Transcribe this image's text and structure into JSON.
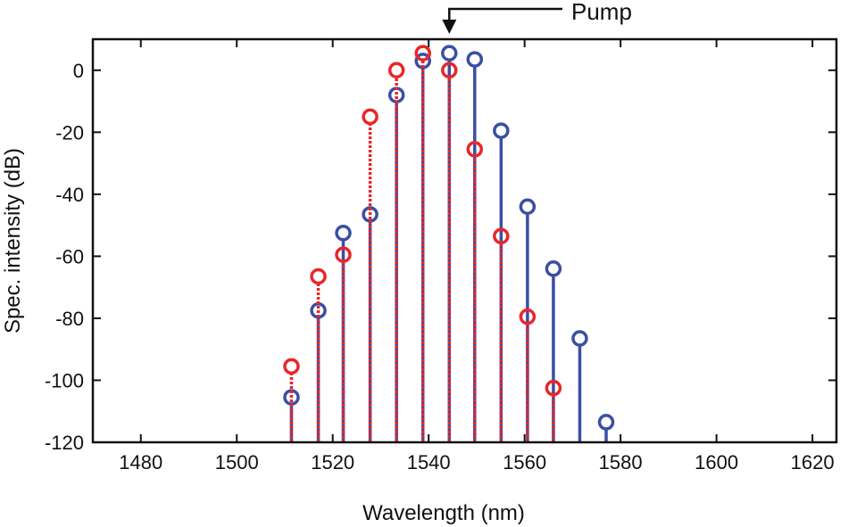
{
  "chart_data": {
    "type": "stem",
    "title": "",
    "xlabel": "Wavelength (nm)",
    "ylabel": "Spec. intensity (dB)",
    "xlim": [
      1470,
      1625
    ],
    "ylim": [
      -120,
      10
    ],
    "x_ticks": [
      1480,
      1500,
      1520,
      1540,
      1560,
      1580,
      1600,
      1620
    ],
    "y_ticks": [
      0,
      -20,
      -40,
      -60,
      -80,
      -100,
      -120
    ],
    "grid": false,
    "legend": "none",
    "baseline": -120,
    "series": [
      {
        "name": "blue",
        "color": "#3a4fa3",
        "line_style": "solid",
        "x": [
          1511.4,
          1517.0,
          1522.2,
          1527.8,
          1533.3,
          1538.8,
          1544.3,
          1549.6,
          1555.1,
          1560.6,
          1566.0,
          1571.5,
          1577.0
        ],
        "values": [
          -105.5,
          -77.5,
          -52.5,
          -46.5,
          -8,
          3,
          5.5,
          3.5,
          -19.5,
          -44,
          -64,
          -86.5,
          -113.5
        ]
      },
      {
        "name": "red",
        "color": "#e8262a",
        "line_style": "dotted",
        "x": [
          1511.4,
          1517.0,
          1522.2,
          1527.8,
          1533.3,
          1538.8,
          1544.3,
          1549.6,
          1555.1,
          1560.6,
          1566.0
        ],
        "values": [
          -95.5,
          -66.5,
          -59.5,
          -15,
          0,
          5.5,
          0,
          -25.5,
          -53.5,
          -79.5,
          -102.5
        ]
      }
    ],
    "annotations": [
      {
        "text": "Pump",
        "x": 1544.3
      }
    ]
  }
}
